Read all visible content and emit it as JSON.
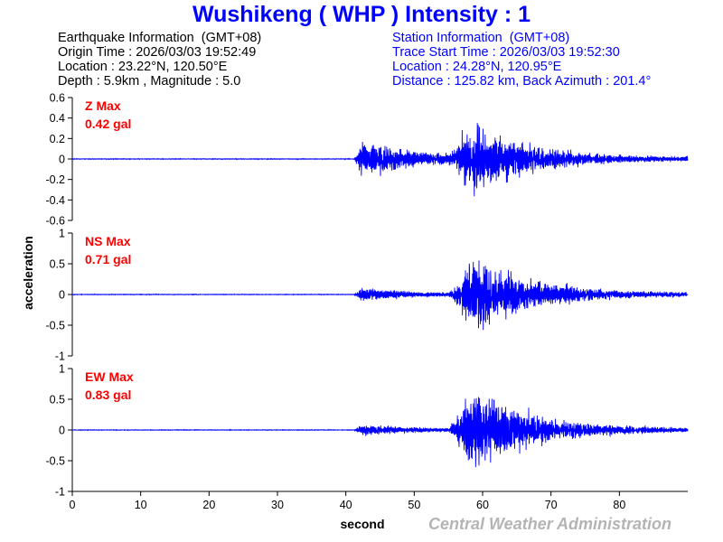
{
  "header": {
    "title": "Wushikeng  ( WHP )  Intensity : 1"
  },
  "earthquake": {
    "heading": "Earthquake Information  (GMT+08)",
    "origin_time": "Origin Time : 2026/03/03 19:52:49",
    "location": "Location : 23.22°N, 120.50°E",
    "depth_magnitude": "Depth : 5.9km , Magnitude : 5.0"
  },
  "station": {
    "heading": "Station Information  (GMT+08)",
    "trace_start": "Trace Start Time : 2026/03/03 19:52:30",
    "location": "Location : 24.28°N, 120.95°E",
    "distance": "Distance : 125.82 km, Back Azimuth : 201.4°"
  },
  "footer": {
    "xlabel": "second",
    "ylabel": "acceleration",
    "credit": "Central Weather Administration"
  },
  "colors": {
    "trace": "#0000ff",
    "max_label": "#ff0000",
    "title": "#0000ff",
    "credit": "#b4b4b4"
  },
  "chart_data": {
    "type": "line",
    "xlabel": "second",
    "ylabel": "acceleration",
    "xlim": [
      0,
      90
    ],
    "x_ticks": [
      "0",
      "10",
      "20",
      "30",
      "40",
      "50",
      "60",
      "70",
      "80"
    ],
    "x_tick_values": [
      0,
      10,
      20,
      30,
      40,
      50,
      60,
      70,
      80
    ],
    "p_arrival_s": 41.2,
    "s_arrival_s": 57.0,
    "duration_s": 90,
    "panels": [
      {
        "name": "Z",
        "max_label": "Z Max",
        "max_value": "0.42 gal",
        "peak": 0.42,
        "ylim": [
          -0.6,
          0.6
        ],
        "y_ticks": [
          "0.6",
          "0.4",
          "0.2",
          "0",
          "-0.2",
          "-0.4",
          "-0.6"
        ],
        "y_tick_values": [
          0.6,
          0.4,
          0.2,
          0,
          -0.2,
          -0.4,
          -0.6
        ],
        "noise": 0.004,
        "p_amp": 0.2,
        "s_amp": 0.32,
        "tail_amp": 0.03
      },
      {
        "name": "NS",
        "max_label": "NS Max",
        "max_value": "0.71 gal",
        "peak": 0.71,
        "ylim": [
          -1,
          1
        ],
        "y_ticks": [
          "1",
          "0.5",
          "0",
          "-0.5",
          "-1"
        ],
        "y_tick_values": [
          1,
          0.5,
          0,
          -0.5,
          -1
        ],
        "noise": 0.006,
        "p_amp": 0.12,
        "s_amp": 0.6,
        "tail_amp": 0.05
      },
      {
        "name": "EW",
        "max_label": "EW Max",
        "max_value": "0.83 gal",
        "peak": 0.83,
        "ylim": [
          -1,
          1
        ],
        "y_ticks": [
          "1",
          "0.5",
          "0",
          "-0.5",
          "-1"
        ],
        "y_tick_values": [
          1,
          0.5,
          0,
          -0.5,
          -1
        ],
        "noise": 0.006,
        "p_amp": 0.1,
        "s_amp": 0.68,
        "tail_amp": 0.05
      }
    ]
  }
}
